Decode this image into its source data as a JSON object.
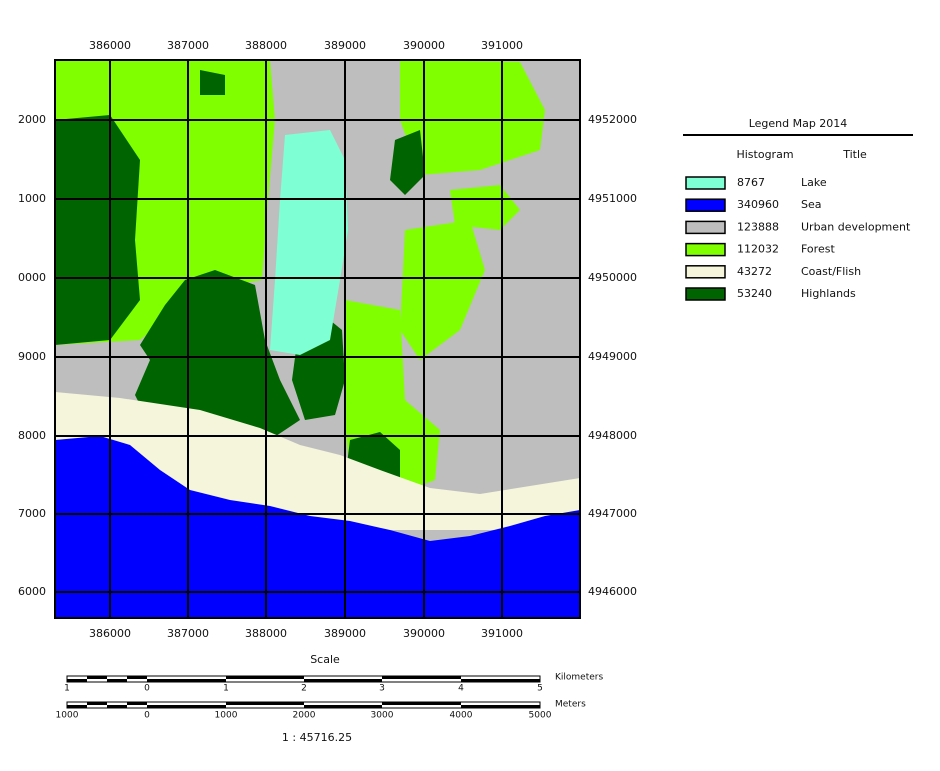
{
  "map": {
    "top_labels": [
      "386000",
      "387000",
      "388000",
      "389000",
      "390000",
      "391000"
    ],
    "left_labels": [
      "2000",
      "1000",
      "0000",
      "9000",
      "8000",
      "7000",
      "6000"
    ],
    "right_labels": [
      "4952000",
      "4951000",
      "4950000",
      "4949000",
      "4948000",
      "4947000",
      "4946000"
    ]
  },
  "legend": {
    "title": "Legend Map 2014",
    "headers": [
      "Histogram",
      "Title"
    ],
    "items": [
      {
        "count": 8767,
        "label": "Lake",
        "color": "#7fffd4"
      },
      {
        "count": 340960,
        "label": "Sea",
        "color": "#0000ff"
      },
      {
        "count": 123888,
        "label": "Urban development",
        "color": "#bebebe"
      },
      {
        "count": 112032,
        "label": "Forest",
        "color": "#80ff00"
      },
      {
        "count": 43272,
        "label": "Coast/Flish",
        "color": "#f5f5dc"
      },
      {
        "count": 53240,
        "label": "Highlands",
        "color": "#006400"
      }
    ]
  },
  "scale": {
    "title": "Scale",
    "km_unit": "Kilometers",
    "km_labels": [
      "1",
      "0",
      "1",
      "2",
      "3",
      "4",
      "5"
    ],
    "m_unit": "Meters",
    "m_labels": [
      "1000",
      "0",
      "1000",
      "2000",
      "3000",
      "4000",
      "5000"
    ],
    "ratio": "1 : 45716.25"
  }
}
